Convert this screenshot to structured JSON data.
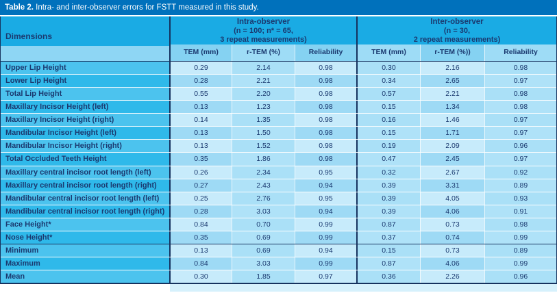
{
  "title": {
    "bold": "Table 2.",
    "rest": " Intra- and inter-observer errors for FSTT measured in this study."
  },
  "header": {
    "dimensions": "Dimensions",
    "groups": [
      {
        "name": "Intra-observer",
        "line2": "(n = 100; n* = 65,",
        "line3": "3 repeat measurements)",
        "cols": [
          "TEM (mm)",
          "r-TEM (%)",
          "Reliability"
        ]
      },
      {
        "name": "Inter-observer",
        "line2": "(n = 30,",
        "line3": "2 repeat measurements)",
        "cols": [
          "TEM (mm)",
          "r-TEM (%))",
          "Reliability"
        ]
      }
    ]
  },
  "rows": [
    {
      "label": "Upper Lip Height",
      "values": [
        "0.29",
        "2.14",
        "0.98",
        "0.30",
        "2.16",
        "0.98"
      ]
    },
    {
      "label": "Lower Lip Height",
      "values": [
        "0.28",
        "2.21",
        "0.98",
        "0.34",
        "2.65",
        "0.97"
      ]
    },
    {
      "label": "Total Lip Height",
      "values": [
        "0.55",
        "2.20",
        "0.98",
        "0.57",
        "2.21",
        "0.98"
      ]
    },
    {
      "label": "Maxillary Incisor Height (left)",
      "values": [
        "0.13",
        "1.23",
        "0.98",
        "0.15",
        "1.34",
        "0.98"
      ]
    },
    {
      "label": "Maxillary Incisor Height (right)",
      "values": [
        "0.14",
        "1.35",
        "0.98",
        "0.16",
        "1.46",
        "0.97"
      ]
    },
    {
      "label": "Mandibular Incisor Height (left)",
      "values": [
        "0.13",
        "1.50",
        "0.98",
        "0.15",
        "1.71",
        "0.97"
      ]
    },
    {
      "label": "Mandibular Incisor Height (right)",
      "values": [
        "0.13",
        "1.52",
        "0.98",
        "0.19",
        "2.09",
        "0.96"
      ]
    },
    {
      "label": "Total Occluded Teeth Height",
      "values": [
        "0.35",
        "1.86",
        "0.98",
        "0.47",
        "2.45",
        "0.97"
      ]
    },
    {
      "label": "Maxillary central incisor root length (left)",
      "values": [
        "0.26",
        "2.34",
        "0.95",
        "0.32",
        "2.67",
        "0.92"
      ]
    },
    {
      "label": "Maxillary central incisor root length (right)",
      "values": [
        "0.27",
        "2.43",
        "0.94",
        "0.39",
        "3.31",
        "0.89"
      ]
    },
    {
      "label": "Mandibular central incisor root length (left)",
      "values": [
        "0.25",
        "2.76",
        "0.95",
        "0.39",
        "4.05",
        "0.93"
      ]
    },
    {
      "label": "Mandibular central incisor root length (right)",
      "values": [
        "0.28",
        "3.03",
        "0.94",
        "0.39",
        "4.06",
        "0.91"
      ]
    },
    {
      "label": "Face Height*",
      "values": [
        "0.84",
        "0.70",
        "0.99",
        "0.87",
        "0.73",
        "0.98"
      ]
    },
    {
      "label": "Nose Height*",
      "values": [
        "0.35",
        "0.69",
        "0.99",
        "0.37",
        "0.74",
        "0.99"
      ]
    },
    {
      "label": "Minimum",
      "summary_start": true,
      "values": [
        "0.13",
        "0.69",
        "0.94",
        "0.15",
        "0.73",
        "0.89"
      ]
    },
    {
      "label": "Maximum",
      "values": [
        "0.84",
        "3.03",
        "0.99",
        "0.87",
        "4.06",
        "0.99"
      ]
    },
    {
      "label": "Mean",
      "values": [
        "0.30",
        "1.85",
        "0.97",
        "0.36",
        "2.26",
        "0.96"
      ]
    }
  ],
  "colors": {
    "titlebar": "#0071bc",
    "azure": "#1aabe4",
    "line": "#16325e",
    "text": "#1b3a70",
    "labL": "#4cc3ee",
    "labD": "#2fb9ea",
    "subA": "#85d2f2",
    "subB": "#9edcf6",
    "subdim": "#8ed6f4",
    "dataLL": "#c7ebfb",
    "dataLD": "#aae0f7",
    "dataDL": "#9edaf5",
    "dataDD": "#afe2f8",
    "strip": "#d6f1fc"
  }
}
